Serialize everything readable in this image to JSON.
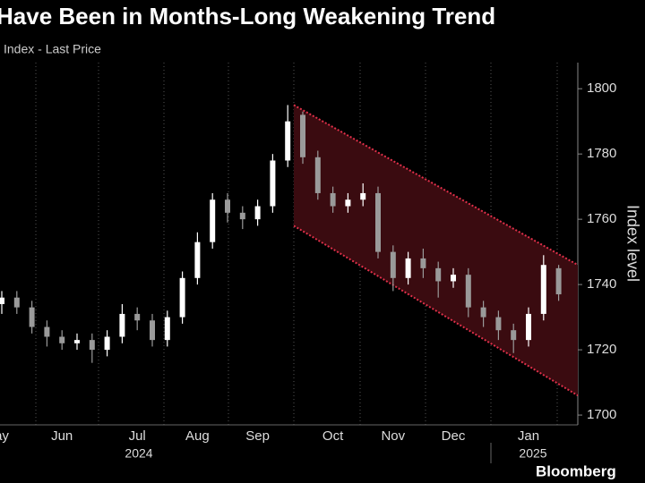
{
  "chart_data": {
    "type": "candlestick",
    "title": "Have Been in Months-Long Weakening Trend",
    "subtitle": "Index - Last Price",
    "y_axis_label": "Index level",
    "source": "Bloomberg",
    "categories": [
      "ay",
      null,
      null,
      null,
      "Jun",
      null,
      null,
      null,
      null,
      "Jul",
      null,
      null,
      null,
      "Aug",
      null,
      null,
      null,
      "Sep",
      null,
      null,
      null,
      null,
      "Oct",
      null,
      null,
      null,
      "Nov",
      null,
      null,
      null,
      "Dec",
      null,
      null,
      null,
      null,
      "Jan",
      null,
      null
    ],
    "year_labels": [
      "2024",
      "2025"
    ],
    "open": [
      1734,
      1736,
      1733,
      1727,
      1724,
      1722,
      1723,
      1720,
      1724,
      1731,
      1729,
      1723,
      1730,
      1742,
      1753,
      1766,
      1762,
      1760,
      1764,
      1778,
      1792,
      1779,
      1768,
      1764,
      1766,
      1768,
      1750,
      1742,
      1748,
      1745,
      1741,
      1743,
      1733,
      1730,
      1726,
      1723,
      1731,
      1745
    ],
    "high": [
      1738,
      1738,
      1735,
      1729,
      1726,
      1725,
      1725,
      1726,
      1734,
      1733,
      1731,
      1732,
      1744,
      1756,
      1768,
      1768,
      1764,
      1766,
      1780,
      1795,
      1793,
      1781,
      1770,
      1768,
      1771,
      1770,
      1752,
      1750,
      1751,
      1747,
      1745,
      1745,
      1735,
      1732,
      1728,
      1733,
      1749,
      1746
    ],
    "low": [
      1731,
      1731,
      1725,
      1721,
      1720,
      1720,
      1716,
      1718,
      1722,
      1726,
      1721,
      1721,
      1728,
      1740,
      1751,
      1759,
      1757,
      1758,
      1762,
      1776,
      1777,
      1766,
      1762,
      1762,
      1764,
      1748,
      1738,
      1740,
      1742,
      1736,
      1739,
      1730,
      1727,
      1723,
      1719,
      1721,
      1729,
      1735
    ],
    "close": [
      1736,
      1733,
      1727,
      1724,
      1722,
      1723,
      1720,
      1724,
      1731,
      1729,
      1723,
      1730,
      1742,
      1753,
      1766,
      1762,
      1760,
      1764,
      1778,
      1790,
      1779,
      1768,
      1764,
      1766,
      1768,
      1750,
      1742,
      1748,
      1745,
      1741,
      1743,
      1733,
      1730,
      1726,
      1723,
      1731,
      1746,
      1737
    ],
    "up_color": "#ffffff",
    "down_color": "#9a9a9a",
    "channel": {
      "upper": [
        1795,
        1746
      ],
      "lower": [
        1758,
        1706
      ],
      "fill": "#3a0b10",
      "line_color": "#e0304a"
    },
    "ylim": [
      1697,
      1808
    ],
    "yticks": [
      1700,
      1720,
      1740,
      1760,
      1780,
      1800
    ]
  }
}
